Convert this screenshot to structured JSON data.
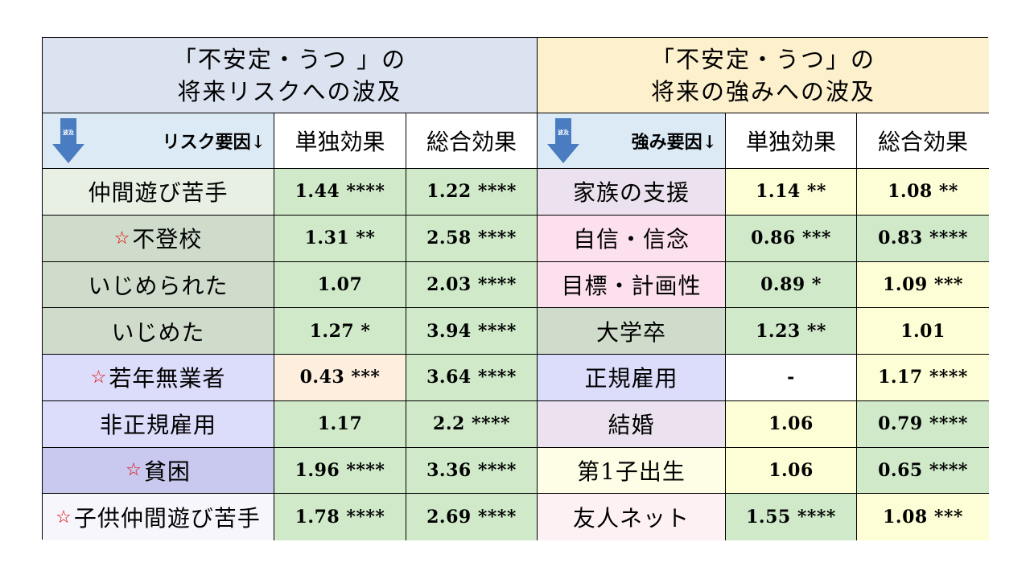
{
  "left_title": [
    "「不安定・うつ 」の",
    "将来リスクへの波及"
  ],
  "right_title": [
    "「不安定・うつ」の",
    "将来の強みへの波及"
  ],
  "left_factor_header": "リスク要因↓",
  "right_factor_header": "強み要因↓",
  "arrow_label": "波及",
  "col_single": "単独効果",
  "col_total": "総合効果",
  "star_symbol": "☆",
  "left_rows": [
    {
      "label": "仲間遊び苦手",
      "star": false,
      "single": "1.44 ****",
      "total": "1.22 ****"
    },
    {
      "label": "不登校",
      "star": true,
      "single": "1.31 **",
      "total": "2.58 ****"
    },
    {
      "label": "いじめられた",
      "star": false,
      "single": "1.07",
      "total": "2.03 ****"
    },
    {
      "label": "いじめた",
      "star": false,
      "single": "1.27 *",
      "total": "3.94 ****"
    },
    {
      "label": "若年無業者",
      "star": true,
      "single": "0.43 ***",
      "total": "3.64 ****"
    },
    {
      "label": "非正規雇用",
      "star": false,
      "single": "1.17",
      "total": "2.2 ****"
    },
    {
      "label": "貧困",
      "star": true,
      "single": "1.96 ****",
      "total": "3.36 ****"
    },
    {
      "label": "子供仲間遊び苦手",
      "star": true,
      "single": "1.78 ****",
      "total": "2.69 ****"
    }
  ],
  "right_rows": [
    {
      "label": "家族の支援",
      "single": "1.14 **",
      "total": "1.08 **"
    },
    {
      "label": "自信・信念",
      "single": "0.86 ***",
      "total": "0.83 ****"
    },
    {
      "label": "目標・計画性",
      "single": "0.89 *",
      "total": "1.09 ***"
    },
    {
      "label": "大学卒",
      "single": "1.23 **",
      "total": "1.01"
    },
    {
      "label": "正規雇用",
      "single": "-",
      "total": "1.17 ****"
    },
    {
      "label": "結婚",
      "single": "1.06",
      "total": "0.79 ****"
    },
    {
      "label": "第1子出生",
      "single": "1.06",
      "total": "0.65 ****"
    },
    {
      "label": "友人ネット",
      "single": "1.55 ****",
      "total": "1.08 ***"
    }
  ],
  "colors": {
    "left_labels": [
      "#e8f0e4",
      "#cfdccc",
      "#cfdccc",
      "#cfdccc",
      "#dcdcfb",
      "#dcdcfb",
      "#c9c9ef",
      "#f6f6fc"
    ],
    "left_single": [
      "#cfe9c9",
      "#cfe9c9",
      "#cfe9c9",
      "#cfe9c9",
      "#fdeedd",
      "#cfe9c9",
      "#cfe9c9",
      "#cfe9c9"
    ],
    "left_total": [
      "#cfe9c9",
      "#cfe9c9",
      "#cfe9c9",
      "#cfe9c9",
      "#cfe9c9",
      "#cfe9c9",
      "#cfe9c9",
      "#cfe9c9"
    ],
    "right_labels": [
      "#ece2ef",
      "#fde0ee",
      "#fde0ee",
      "#cfdccc",
      "#dcdcfb",
      "#ece2ef",
      "#fefee6",
      "#fdf1f4"
    ],
    "right_single": [
      "#fefed6",
      "#cfe9c9",
      "#cfe9c9",
      "#cfe9c9",
      "#ffffff",
      "#fefed6",
      "#fefed6",
      "#cfe9c9"
    ],
    "right_total": [
      "#fefed6",
      "#cfe9c9",
      "#fefed6",
      "#fefed6",
      "#fefed6",
      "#cfe9c9",
      "#cfe9c9",
      "#fefed6"
    ],
    "col_head_bg": "#ffffff",
    "arrow": "#4a7cc1"
  }
}
